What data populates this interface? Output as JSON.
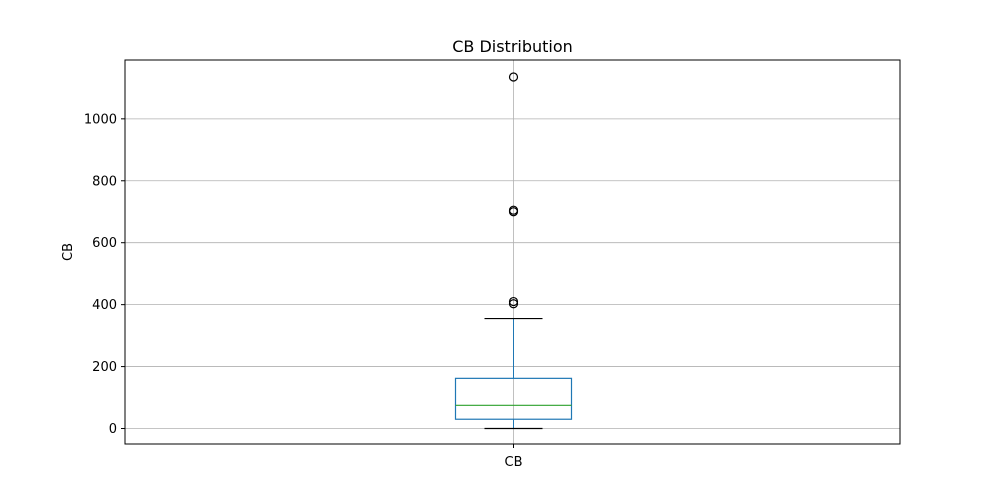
{
  "chart_data": {
    "type": "box",
    "title": "CB Distribution",
    "xlabel": "",
    "ylabel": "CB",
    "categories": [
      "CB"
    ],
    "ylim": [
      -50,
      1190
    ],
    "yticks": [
      0,
      200,
      400,
      600,
      800,
      1000
    ],
    "grid": true,
    "box": {
      "whisker_low": 0,
      "q1": 30,
      "median": 75,
      "q3": 162,
      "whisker_high": 355
    },
    "outliers": [
      403,
      410,
      700,
      705,
      1135
    ],
    "colors": {
      "box": "#1f77b4",
      "median": "#2ca02c",
      "whisker": "#1f77b4",
      "cap": "#000000",
      "outlier": "#000000",
      "grid": "#b0b0b0"
    }
  }
}
